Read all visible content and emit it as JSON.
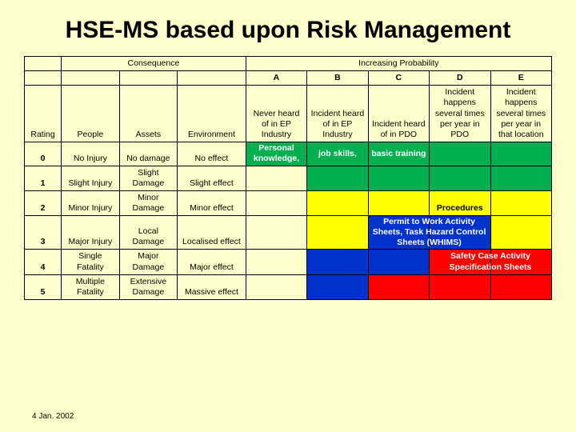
{
  "title": "HSE-MS based upon Risk Management",
  "footer_date": "4 Jan. 2002",
  "colors": {
    "page_bg": "#ffffcc",
    "green": "#00b050",
    "yellow": "#ffff00",
    "blue": "#0033cc",
    "red": "#ff0000",
    "white_text": "#ffffff",
    "black_text": "#000000",
    "border": "#000000"
  },
  "header": {
    "consequence": "Consequence",
    "increasing_prob": "Increasing Probability",
    "col_a": "A",
    "col_b": "B",
    "col_c": "C",
    "col_d": "D",
    "col_e": "E",
    "rating": "Rating",
    "people": "People",
    "assets": "Assets",
    "environment": "Environment",
    "a_desc": "Never heard of in EP Industry",
    "b_desc": "Incident heard of in EP Industry",
    "c_desc": "Incident heard of in PDO",
    "d_desc": "Incident happens several times per year in PDO",
    "e_desc": "Incident happens several times per year in that location"
  },
  "rows": [
    {
      "rating": "0",
      "people": "No Injury",
      "assets": "No damage",
      "env": "No effect",
      "cells": [
        {
          "bg": "green"
        },
        {
          "bg": "green"
        },
        {
          "bg": "green"
        },
        {
          "bg": "green"
        },
        {
          "bg": "green"
        }
      ]
    },
    {
      "rating": "1",
      "people": "Slight Injury",
      "assets": "Slight Damage",
      "env": "Slight effect",
      "cells": [
        {
          "bg": "none"
        },
        {
          "bg": "green"
        },
        {
          "bg": "green"
        },
        {
          "bg": "green"
        },
        {
          "bg": "green"
        }
      ]
    },
    {
      "rating": "2",
      "people": "Minor Injury",
      "assets": "Minor Damage",
      "env": "Minor effect",
      "cells": [
        {
          "bg": "none"
        },
        {
          "bg": "yellow"
        },
        {
          "bg": "yellow"
        },
        {
          "bg": "yellow",
          "text": "Procedures",
          "fg": "black",
          "bold": true
        },
        {
          "bg": "yellow"
        }
      ]
    },
    {
      "rating": "3",
      "people": "Major Injury",
      "assets": "Local Damage",
      "env": "Localised effect",
      "cells": [
        {
          "bg": "none"
        },
        {
          "bg": "yellow"
        },
        {
          "bg": "blue"
        },
        {
          "bg": "blue"
        },
        {
          "bg": "yellow"
        }
      ]
    },
    {
      "rating": "4",
      "people": "Single Fatality",
      "assets": "Major Damage",
      "env": "Major effect",
      "cells": [
        {
          "bg": "none"
        },
        {
          "bg": "blue"
        },
        {
          "bg": "blue"
        },
        {
          "bg": "red"
        },
        {
          "bg": "red"
        }
      ]
    },
    {
      "rating": "5",
      "people": "Multiple Fatality",
      "assets": "Extensive Damage",
      "env": "Massive effect",
      "cells": [
        {
          "bg": "none"
        },
        {
          "bg": "blue"
        },
        {
          "bg": "red"
        },
        {
          "bg": "red"
        },
        {
          "bg": "red"
        }
      ]
    }
  ],
  "overlays": {
    "personal": "Personal knowledge,",
    "jobskills": "job skills,",
    "basic": "basic training",
    "permit": "Permit to Work Activity Sheets, Task Hazard Control Sheets (WHIMS)",
    "safety": "Safety Case Activity Specification Sheets"
  },
  "layout": {
    "col_widths_pct": [
      7,
      11,
      11,
      13,
      11.6,
      11.6,
      11.6,
      11.6,
      11.6
    ],
    "row0_height": 30,
    "row3_height": 42
  }
}
